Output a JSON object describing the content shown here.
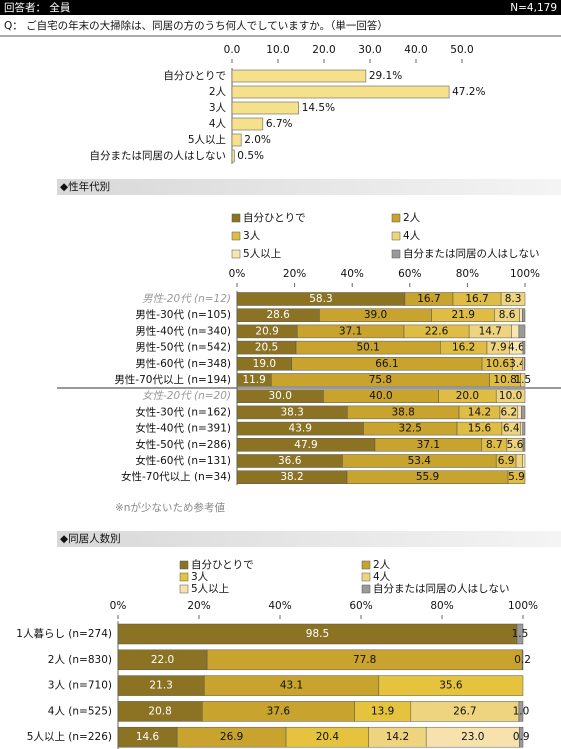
{
  "header": {
    "respondent": "回答者： 全員",
    "n": "N=4,179",
    "question": "Q：  ご自宅の年末の大掃除は、同居の方のうち何人でしていますか。（単一回答）"
  },
  "sections": [
    "◆性年代別",
    "◆同居人数別"
  ],
  "note": "※nが少ないため参考値",
  "chart_data": [
    {
      "type": "bar",
      "orientation": "horizontal",
      "color": "#f5e08c",
      "categories": [
        "自分ひとりで",
        "2人",
        "3人",
        "4人",
        "5人以上",
        "自分または同居の人はしない"
      ],
      "values": [
        29.1,
        47.2,
        14.5,
        6.7,
        2.0,
        0.5
      ],
      "value_labels": [
        "29.1%",
        "47.2%",
        "14.5%",
        "6.7%",
        "2.0%",
        "0.5%"
      ],
      "xlim": [
        0,
        50
      ],
      "xticks": [
        {
          "value": 0,
          "label": "0.0"
        },
        {
          "value": 10,
          "label": "10.0"
        },
        {
          "value": 20,
          "label": "20.0"
        },
        {
          "value": 30,
          "label": "30.0"
        },
        {
          "value": 40,
          "label": "40.0"
        },
        {
          "value": 50,
          "label": "50.0"
        }
      ]
    },
    {
      "type": "stacked_bar",
      "orientation": "horizontal",
      "muted": [
        0,
        6
      ],
      "categories": [
        "男性-20代 (n=12)",
        "男性-30代 (n=105)",
        "男性-40代 (n=340)",
        "男性-50代 (n=542)",
        "男性-60代 (n=348)",
        "男性-70代以上 (n=194)",
        "女性-20代 (n=20)",
        "女性-30代 (n=162)",
        "女性-40代 (n=391)",
        "女性-50代 (n=286)",
        "女性-60代 (n=131)",
        "女性-70代以上 (n=34)"
      ],
      "series": [
        {
          "name": "自分ひとりで",
          "color": "#8c7324",
          "values": [
            58.3,
            28.6,
            20.9,
            20.5,
            19.0,
            11.9,
            30.0,
            38.3,
            43.9,
            47.9,
            36.6,
            38.2
          ],
          "value_labels": [
            "58.3",
            "28.6",
            "20.9",
            "20.5",
            "19.0",
            "11.9",
            "30.0",
            "38.3",
            "43.9",
            "47.9",
            "36.6",
            "38.2"
          ]
        },
        {
          "name": "2人",
          "color": "#c8a32e",
          "values": [
            16.7,
            39.0,
            37.1,
            50.1,
            66.1,
            75.8,
            40.0,
            38.8,
            32.5,
            37.1,
            53.4,
            55.9
          ],
          "value_labels": [
            "16.7",
            "39.0",
            "37.1",
            "50.1",
            "66.1",
            "75.8",
            "40.0",
            "38.8",
            "32.5",
            "37.1",
            "53.4",
            "55.9"
          ]
        },
        {
          "name": "3人",
          "color": "#dfbd45",
          "values": [
            16.7,
            21.9,
            22.6,
            16.2,
            10.6,
            10.8,
            20.0,
            14.2,
            15.6,
            8.7,
            6.9,
            5.9
          ],
          "value_labels": [
            "16.7",
            "21.9",
            "22.6",
            "16.2",
            "10.6",
            "10.8",
            "20.0",
            "14.2",
            "15.6",
            "8.7",
            "6.9",
            "5.9"
          ]
        },
        {
          "name": "4人",
          "color": "#eed47e",
          "values": [
            8.3,
            8.6,
            14.7,
            7.9,
            3.4,
            1.5,
            10.0,
            6.2,
            6.4,
            5.6,
            2.3,
            0
          ],
          "value_labels": [
            "8.3",
            "8.6",
            "14.7",
            "7.9",
            "3.4",
            "1.5",
            "10.0",
            "6.2",
            "6.4",
            "5.6",
            null,
            null
          ]
        },
        {
          "name": "5人以上",
          "color": "#f7e6b0",
          "values": [
            0,
            1.0,
            2.6,
            4.6,
            0.6,
            0,
            0,
            1.2,
            0.8,
            0.3,
            0.8,
            0
          ],
          "value_labels": [
            null,
            null,
            null,
            "4.6",
            null,
            null,
            null,
            null,
            null,
            null,
            null,
            null
          ]
        },
        {
          "name": "自分または同居の人はしない",
          "color": "#9a9a9a",
          "values": [
            0,
            0.9,
            2.1,
            0.7,
            0.3,
            0,
            0,
            1.3,
            0.8,
            0.4,
            0,
            0
          ],
          "value_labels": [
            null,
            null,
            null,
            null,
            null,
            null,
            null,
            null,
            null,
            null,
            null,
            null
          ]
        }
      ],
      "xlim": [
        0,
        100
      ],
      "xticks": [
        {
          "value": 0,
          "label": "0%"
        },
        {
          "value": 20,
          "label": "20%"
        },
        {
          "value": 40,
          "label": "40%"
        },
        {
          "value": 60,
          "label": "60%"
        },
        {
          "value": 80,
          "label": "80%"
        },
        {
          "value": 100,
          "label": "100%"
        }
      ]
    },
    {
      "type": "stacked_bar",
      "orientation": "horizontal",
      "muted": [],
      "categories": [
        "1人暮らし (n=274)",
        "2人 (n=830)",
        "3人 (n=710)",
        "4人 (n=525)",
        "5人以上 (n=226)"
      ],
      "series": [
        {
          "name": "自分ひとりで",
          "color": "#8c7324",
          "values": [
            98.5,
            22.0,
            21.3,
            20.8,
            14.6
          ],
          "value_labels": [
            "98.5",
            "22.0",
            "21.3",
            "20.8",
            "14.6"
          ]
        },
        {
          "name": "2人",
          "color": "#c8a32e",
          "values": [
            0,
            77.8,
            43.1,
            37.6,
            26.9
          ],
          "value_labels": [
            null,
            "77.8",
            "43.1",
            "37.6",
            "26.9"
          ]
        },
        {
          "name": "3人",
          "color": "#e6c33e",
          "values": [
            0,
            0,
            35.6,
            13.9,
            20.4
          ],
          "value_labels": [
            null,
            null,
            "35.6",
            "13.9",
            "20.4"
          ]
        },
        {
          "name": "4人",
          "color": "#eed47e",
          "values": [
            0,
            0,
            0,
            26.7,
            14.2
          ],
          "value_labels": [
            null,
            null,
            null,
            "26.7",
            "14.2"
          ]
        },
        {
          "name": "5人以上",
          "color": "#f7e2ad",
          "values": [
            0,
            0,
            0,
            0,
            23.0
          ],
          "value_labels": [
            null,
            null,
            null,
            null,
            "23.0"
          ]
        },
        {
          "name": "自分または同居の人はしない",
          "color": "#9a9a9a",
          "values": [
            1.5,
            0.2,
            0,
            1.0,
            0.9
          ],
          "value_labels": [
            "1.5",
            "0.2",
            null,
            "1.0",
            "0.9"
          ]
        }
      ],
      "xlim": [
        0,
        100
      ],
      "xticks": [
        {
          "value": 0,
          "label": "0%"
        },
        {
          "value": 20,
          "label": "20%"
        },
        {
          "value": 40,
          "label": "40%"
        },
        {
          "value": 60,
          "label": "60%"
        },
        {
          "value": 80,
          "label": "80%"
        },
        {
          "value": 100,
          "label": "100%"
        }
      ]
    }
  ]
}
